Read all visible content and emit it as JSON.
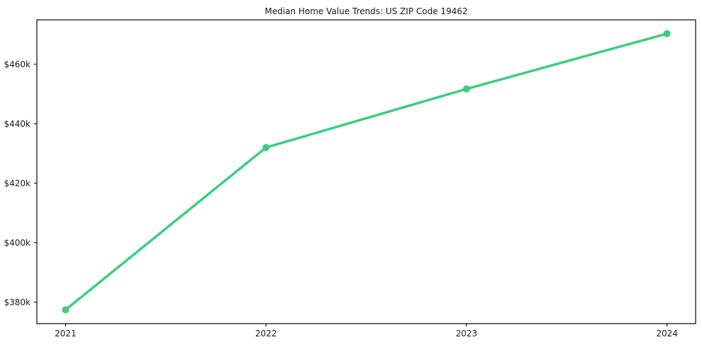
{
  "title": "Median Home Value Trends: US ZIP Code 19462",
  "colors": {
    "line": "#3dcd7d",
    "axis": "#1a1a1a",
    "text": "#1a1a1a",
    "background": "#ffffff"
  },
  "chart_data": {
    "type": "line",
    "title": "Median Home Value Trends: US ZIP Code 19462",
    "categories": [
      "2021",
      "2022",
      "2023",
      "2024"
    ],
    "series": [
      {
        "name": "Median Home Value",
        "values": [
          377400,
          432000,
          451700,
          470300
        ],
        "color": "#3dcd7d",
        "marker": "circle"
      }
    ],
    "xlabel": "",
    "ylabel": "",
    "ylim": [
      372750,
      474950
    ],
    "yticks": [
      {
        "value": 380000,
        "label": "$380k"
      },
      {
        "value": 400000,
        "label": "$400k"
      },
      {
        "value": 420000,
        "label": "$420k"
      },
      {
        "value": 440000,
        "label": "$440k"
      },
      {
        "value": 460000,
        "label": "$460k"
      }
    ],
    "grid": false,
    "legend_position": "none"
  }
}
